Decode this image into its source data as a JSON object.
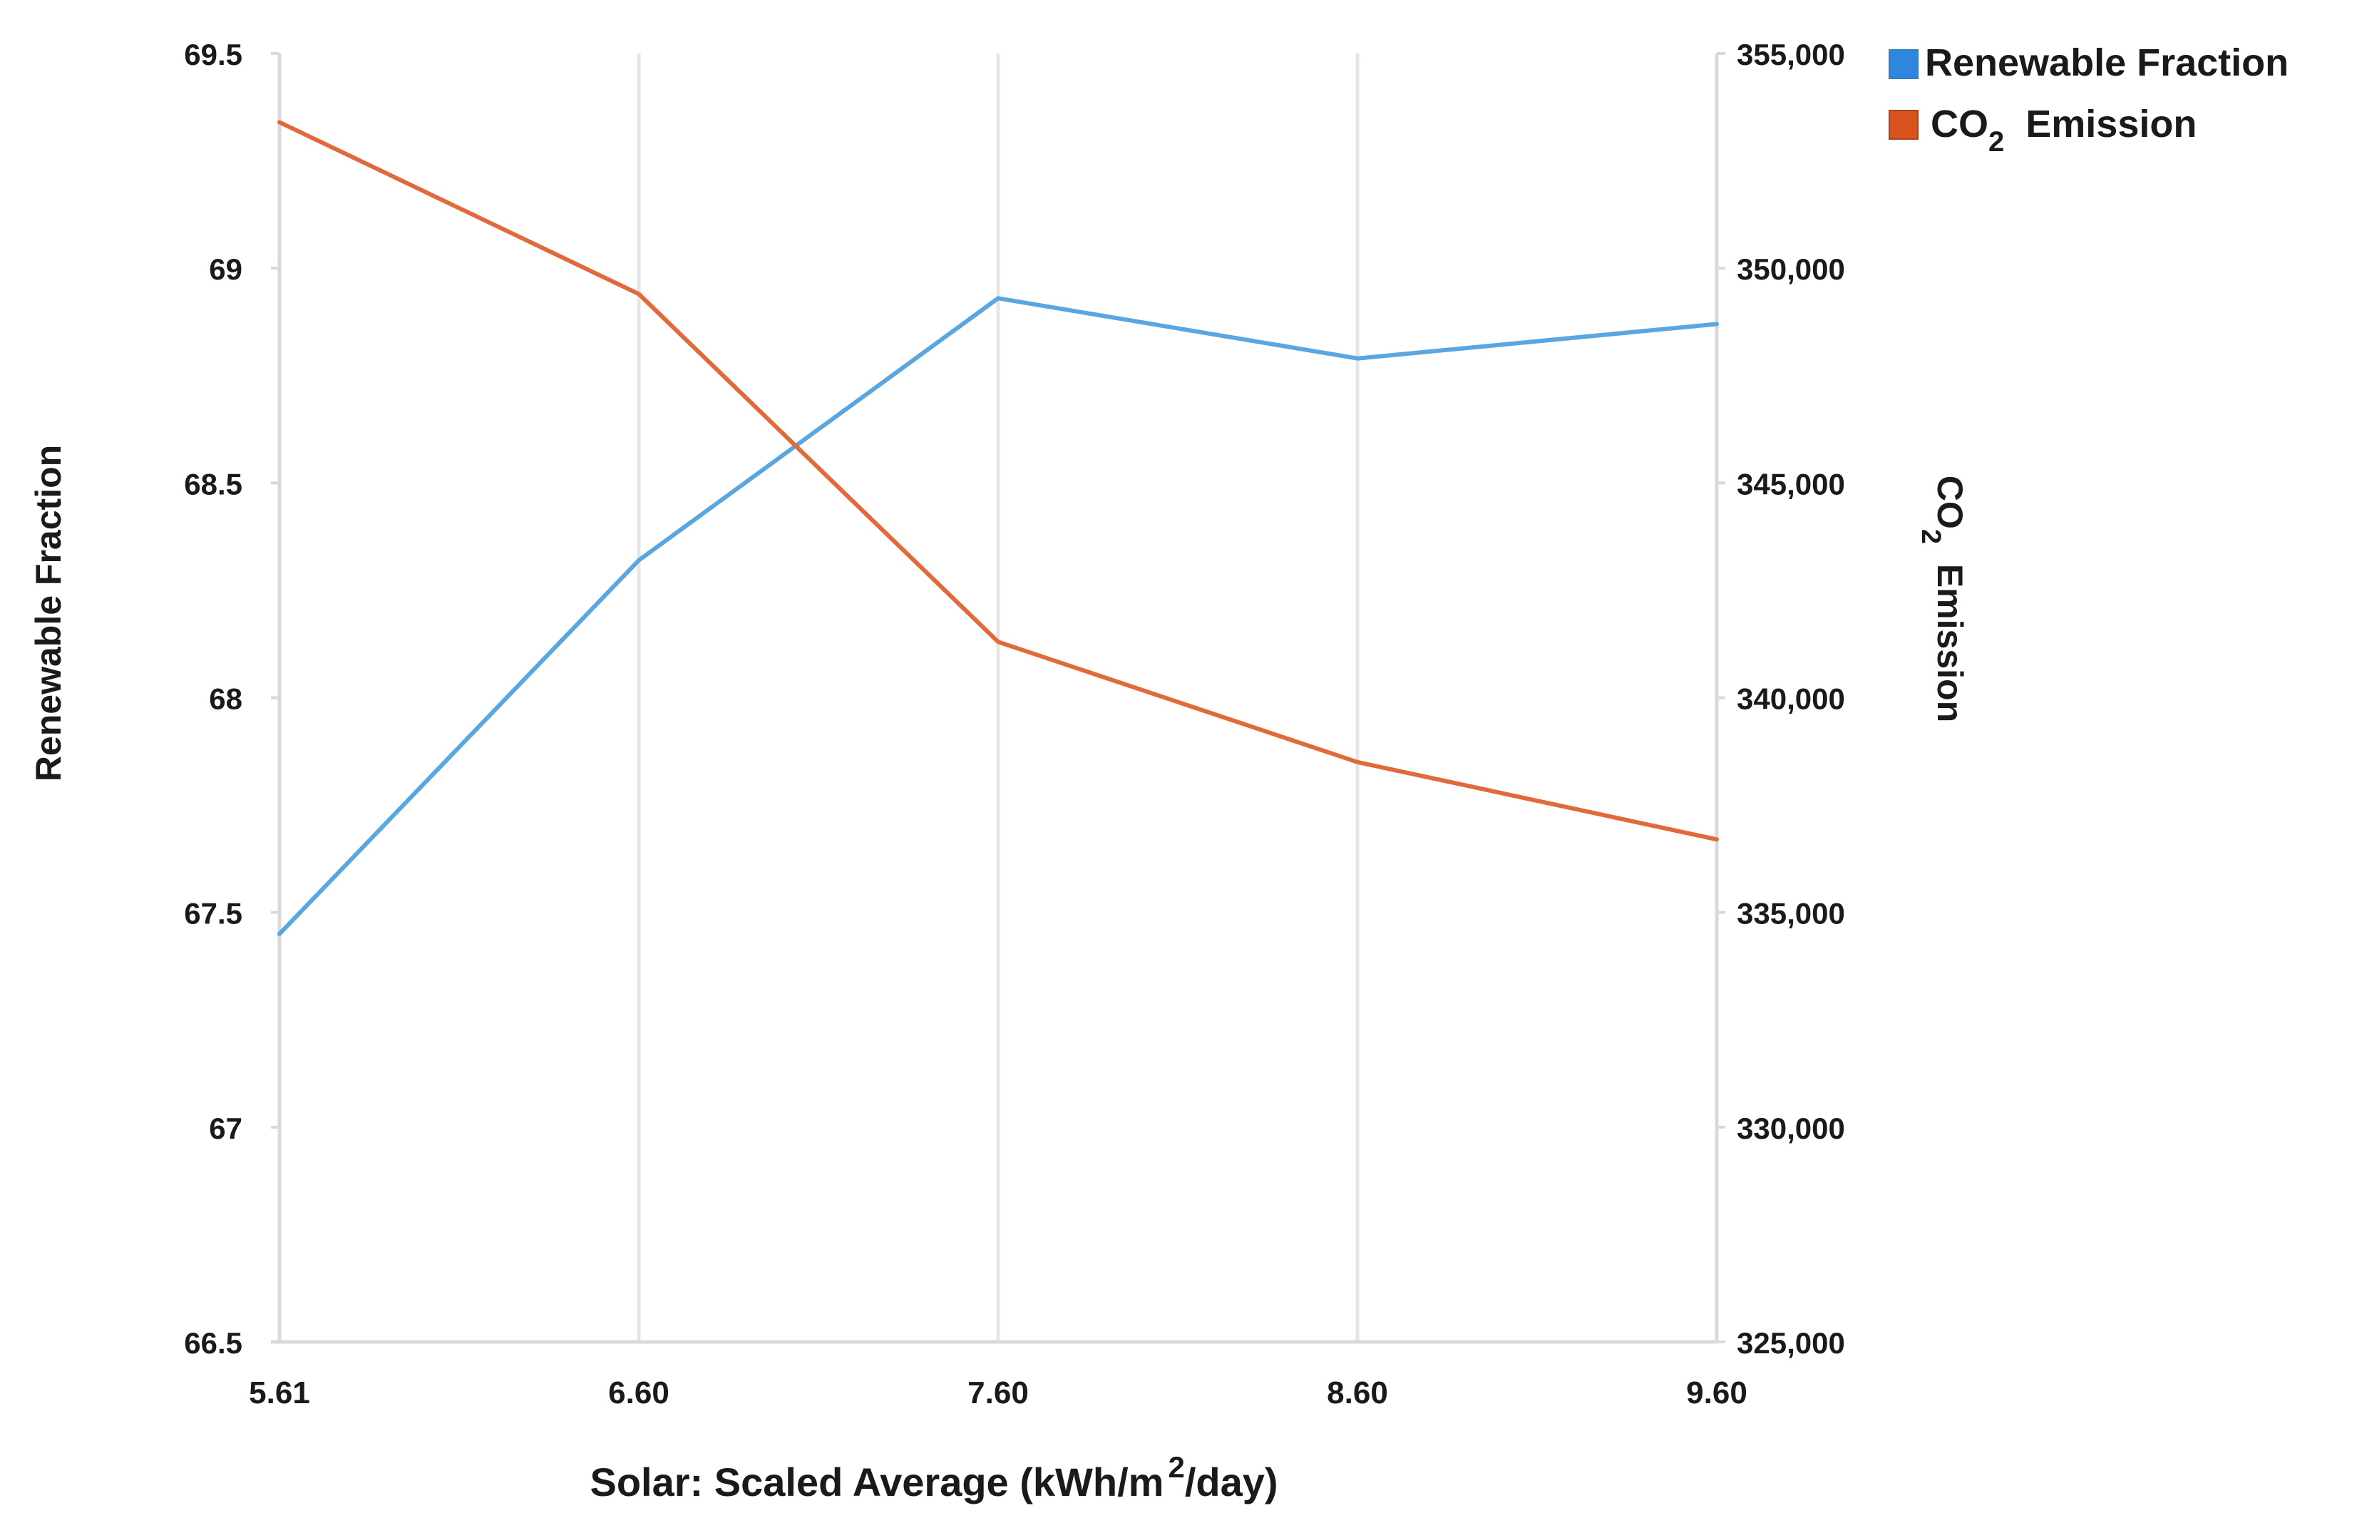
{
  "colors": {
    "renewable": "#5aa6e0",
    "co2": "#e06a3c",
    "grid": "#e6e6e6",
    "axis": "#d9d9d9"
  },
  "chart_data": {
    "type": "line",
    "title": "",
    "x": [
      "5.61",
      "6.60",
      "7.60",
      "8.60",
      "9.60"
    ],
    "xlabel": {
      "pre": "Solar: Scaled Average (kWh/m",
      "sup": "2",
      "post": "/day)"
    },
    "ylabel_left": "Renewable Fraction",
    "ylabel_right": {
      "pre": "CO",
      "sub": "2",
      "post": "  Emission"
    },
    "y_left": {
      "min": 66.5,
      "max": 69.5,
      "ticks": [
        "66.5",
        "67",
        "67.5",
        "68",
        "68.5",
        "69",
        "69.5"
      ]
    },
    "y_right": {
      "min": 325000,
      "max": 355000,
      "ticks": [
        "325,000",
        "330,000",
        "335,000",
        "340,000",
        "345,000",
        "350,000",
        "355,000"
      ]
    },
    "grid": "vertical",
    "legend_position": "top-right",
    "series": [
      {
        "name": "Renewable Fraction",
        "axis": "left",
        "values": [
          67.45,
          68.32,
          68.93,
          68.79,
          68.87
        ]
      },
      {
        "name_pre": "CO",
        "name_sub": "2",
        "name_post": "  Emission",
        "axis": "right",
        "values": [
          353400,
          349400,
          341300,
          338500,
          336700
        ]
      }
    ]
  }
}
